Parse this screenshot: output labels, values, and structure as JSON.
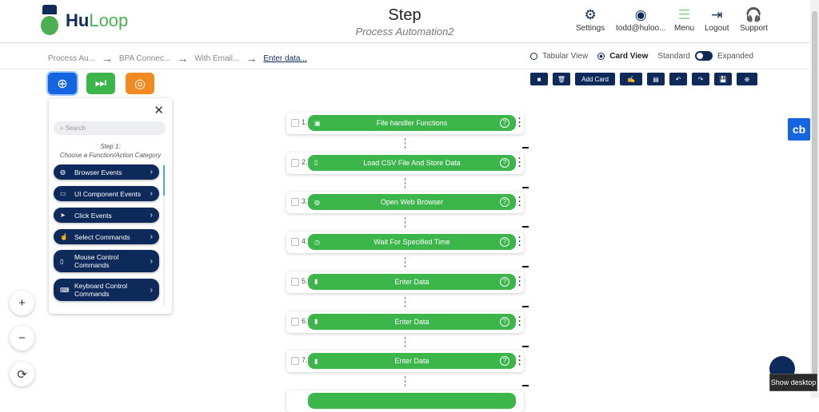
{
  "header": {
    "logo_hu": "Hu",
    "logo_loop": "Loop",
    "title": "Step",
    "subtitle": "Process Automation2",
    "nav": [
      {
        "label": "Settings",
        "icon": "gear-icon",
        "glyph": "⚙"
      },
      {
        "label": "todd@huloo...",
        "icon": "user-icon",
        "glyph": "◉"
      },
      {
        "label": "Menu",
        "icon": "menu-icon",
        "glyph": "☰"
      },
      {
        "label": "Logout",
        "icon": "logout-icon",
        "glyph": "⇥"
      },
      {
        "label": "Support",
        "icon": "headset-icon",
        "glyph": "🎧"
      }
    ]
  },
  "breadcrumb": [
    "Process Au...",
    "BPA Connec...",
    "With Email...",
    "Enter data..."
  ],
  "views": {
    "tabular": "Tabular View",
    "card": "Card View",
    "selected": "Card View",
    "standard": "Standard",
    "expanded": "Expanded"
  },
  "toolbar": {
    "add_card": "Add Card"
  },
  "panel": {
    "search_placeholder": "Search",
    "step": "Step 1:",
    "step_desc": "Choose a Function/Action Category",
    "categories": [
      "Browser Events",
      "UI Component Events",
      "Click Events",
      "Select Commands",
      "Mouse Control Commands",
      "Keyboard Control Commands"
    ]
  },
  "cards": [
    {
      "num": "1.",
      "label": "File handler Functions"
    },
    {
      "num": "2.",
      "label": "Load CSV File And Store Data"
    },
    {
      "num": "3.",
      "label": "Open Web Browser"
    },
    {
      "num": "4.",
      "label": "Wait For Specified Time"
    },
    {
      "num": "5.",
      "label": "Enter Data"
    },
    {
      "num": "6.",
      "label": "Enter Data"
    },
    {
      "num": "7.",
      "label": "Enter Data"
    }
  ],
  "chat_button": "cb",
  "tooltip": "Show desktop",
  "colors": {
    "navy": "#0e2a5a",
    "green": "#3cb54a",
    "orange": "#f28a22",
    "blue": "#1565e0"
  }
}
